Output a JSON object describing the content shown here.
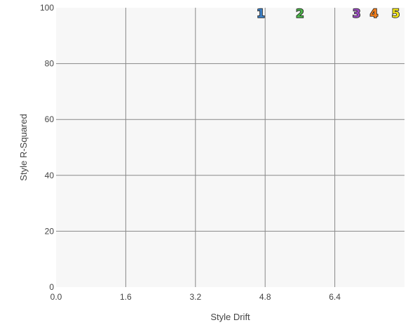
{
  "chart_data": {
    "type": "scatter",
    "title": "",
    "xlabel": "Style Drift",
    "ylabel": "Style R-Squared",
    "xlim": [
      0.0,
      8.0
    ],
    "ylim": [
      0,
      100
    ],
    "xticks": [
      "0.0",
      "1.6",
      "3.2",
      "4.8",
      "6.4"
    ],
    "yticks": [
      "0",
      "20",
      "40",
      "60",
      "80",
      "100"
    ],
    "grid": true,
    "background": "#f7f7f7",
    "gridColor": "#888888",
    "points": [
      {
        "label": "1",
        "x": 4.7,
        "y": 98,
        "color": "#3d7fc4"
      },
      {
        "label": "2",
        "x": 5.6,
        "y": 98,
        "color": "#4db34a"
      },
      {
        "label": "3",
        "x": 6.9,
        "y": 98,
        "color": "#9b4ec0"
      },
      {
        "label": "4",
        "x": 7.3,
        "y": 98,
        "color": "#f07f1f"
      },
      {
        "label": "5",
        "x": 7.8,
        "y": 98,
        "color": "#f2e61a"
      }
    ]
  }
}
